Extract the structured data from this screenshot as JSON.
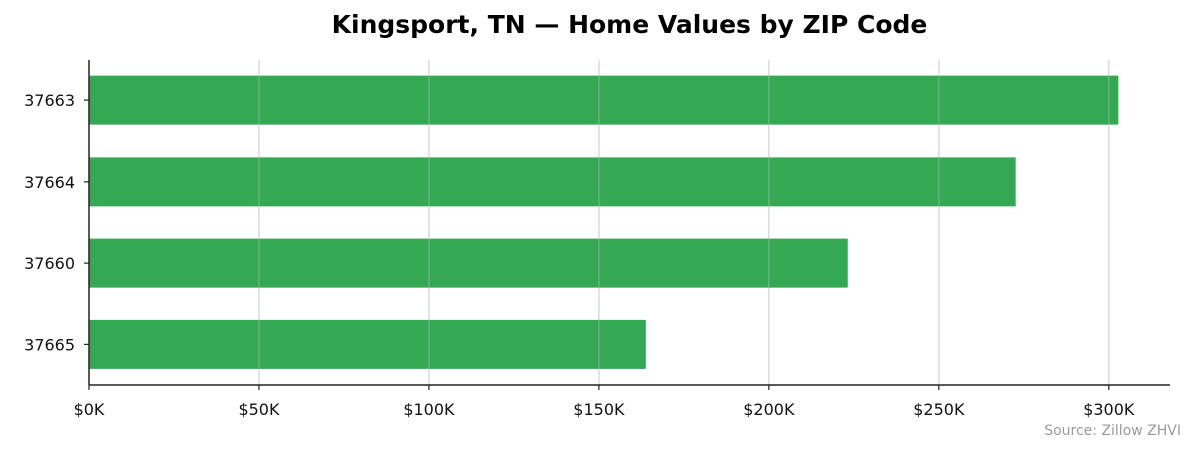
{
  "chart_data": {
    "type": "bar",
    "orientation": "horizontal",
    "title": "Kingsport, TN — Home Values by ZIP Code",
    "categories": [
      "37663",
      "37664",
      "37660",
      "37665"
    ],
    "values": [
      302800,
      272600,
      223200,
      163800
    ],
    "xlim": [
      0,
      318000
    ],
    "xticks": [
      0,
      50000,
      100000,
      150000,
      200000,
      250000,
      300000
    ],
    "xtick_labels": [
      "$0K",
      "$50K",
      "$100K",
      "$150K",
      "$200K",
      "$250K",
      "$300K"
    ],
    "xlabel": "",
    "ylabel": "",
    "grid": "vertical",
    "bar_color": "#34a853",
    "source": "Source: Zillow ZHVI"
  }
}
